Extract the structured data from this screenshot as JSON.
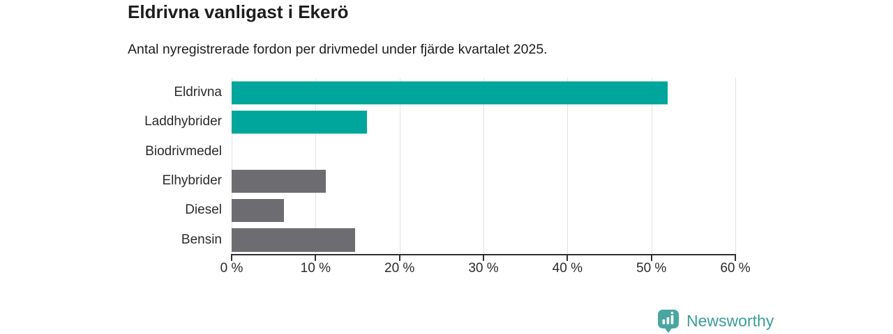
{
  "header": {
    "title": "Eldrivna vanligast i Ekerö",
    "subtitle": "Antal nyregistrerade fordon per drivmedel under fjärde kvartalet 2025."
  },
  "chart_data": {
    "type": "bar",
    "orientation": "horizontal",
    "title": "Eldrivna vanligast i Ekerö",
    "subtitle": "Antal nyregistrerade fordon per drivmedel under fjärde kvartalet 2025.",
    "categories": [
      "Eldrivna",
      "Laddhybrider",
      "Biodrivmedel",
      "Elhybrider",
      "Diesel",
      "Bensin"
    ],
    "values": [
      51.9,
      16.1,
      0,
      11.2,
      6.2,
      14.7
    ],
    "unit": "%",
    "xlabel": "",
    "ylabel": "",
    "xlim": [
      0,
      60
    ],
    "x_ticks": [
      0,
      10,
      20,
      30,
      40,
      50,
      60
    ],
    "x_tick_labels": [
      "0 %",
      "10 %",
      "20 %",
      "30 %",
      "40 %",
      "50 %",
      "60 %"
    ],
    "grid": true,
    "legend": false,
    "highlight_color": "#00a59b",
    "default_color": "#6d6d71",
    "bar_colors": [
      "#00a59b",
      "#00a59b",
      "#6d6d71",
      "#6d6d71",
      "#6d6d71",
      "#6d6d71"
    ]
  },
  "footer": {
    "brand": "Newsworthy",
    "brand_color": "#3b9d98",
    "logo_icon": "bar-chart-speech-bubble-icon",
    "logo_color": "#4aa6a1"
  }
}
